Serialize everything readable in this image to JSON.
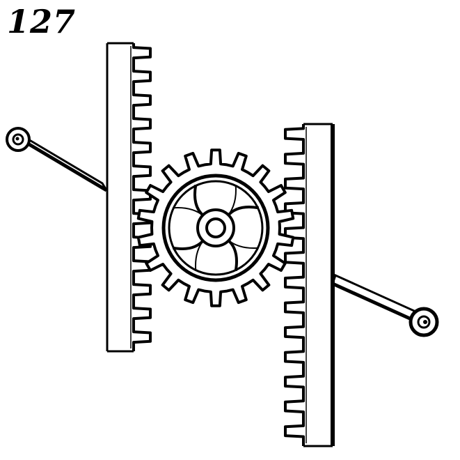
{
  "figure": {
    "number": "127"
  },
  "colors": {
    "ink": "#000000",
    "paper": "#ffffff"
  },
  "mechanism": {
    "gear_teeth": 18,
    "gear_spokes": 4,
    "left_rack_teeth": 13,
    "right_rack_teeth": 13
  }
}
